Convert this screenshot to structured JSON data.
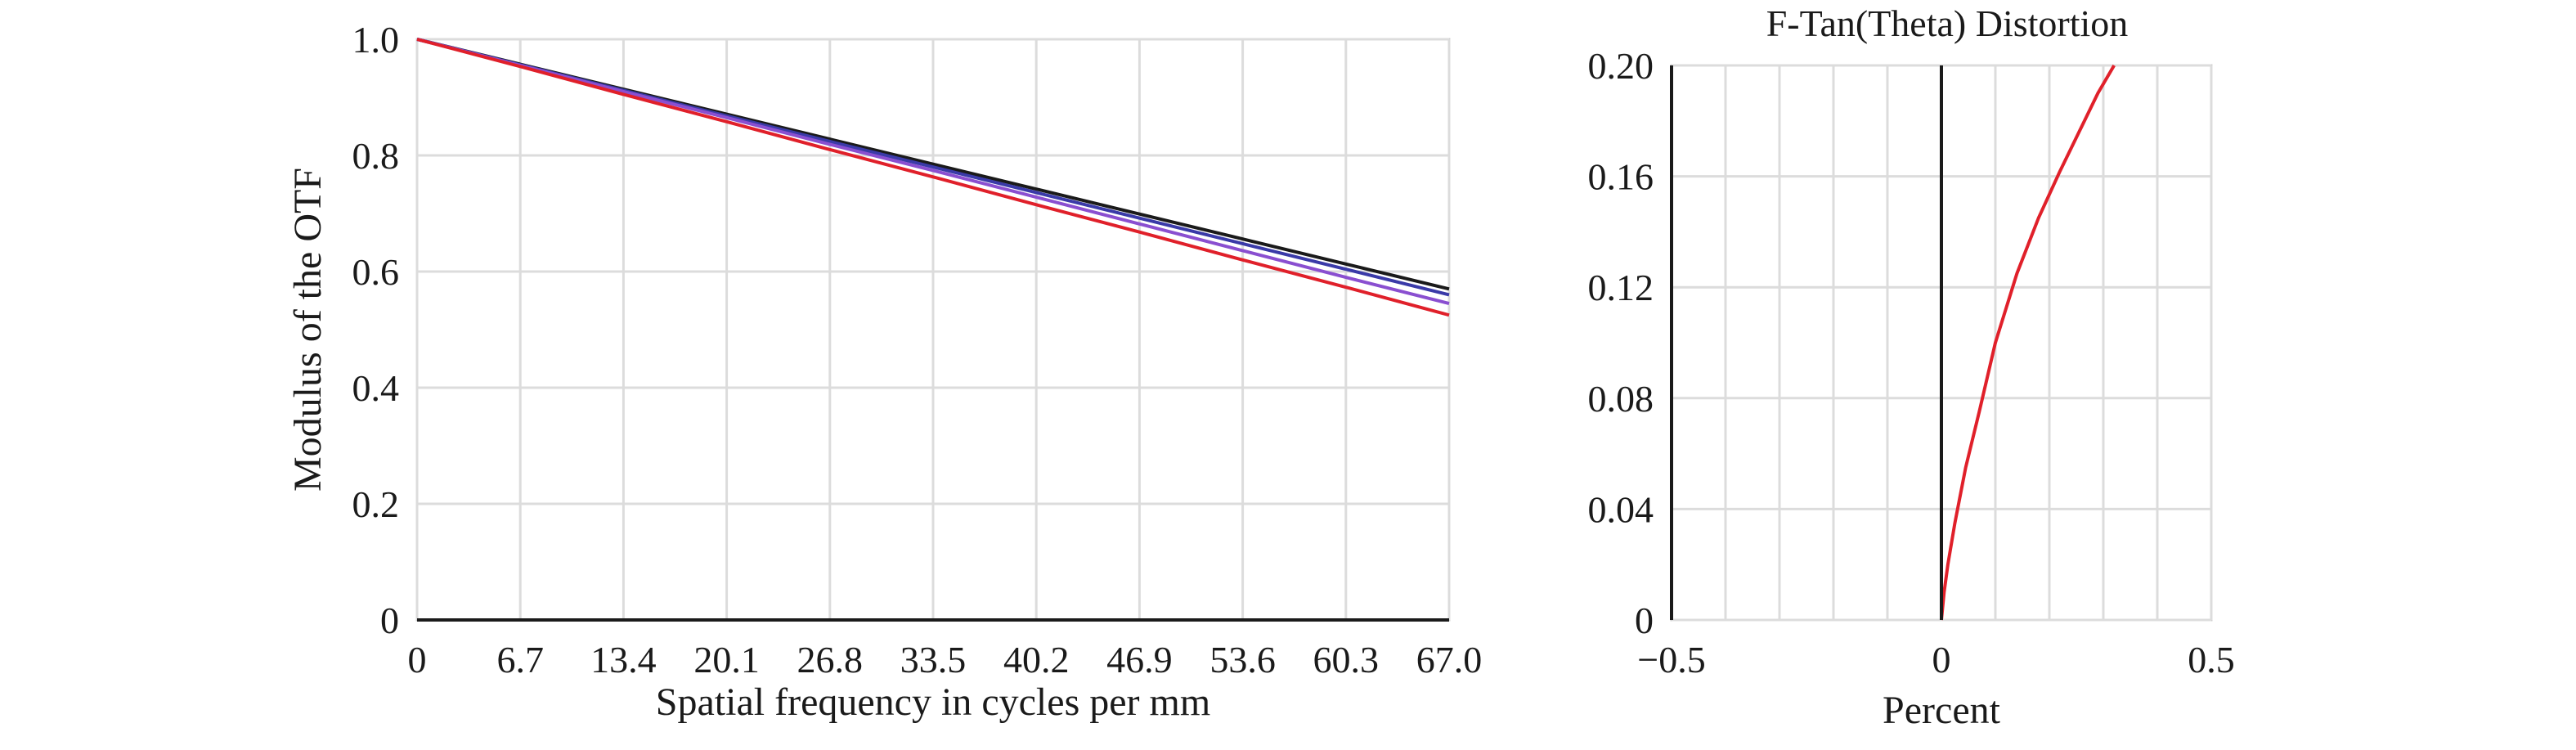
{
  "chart_data": [
    {
      "type": "line",
      "title": "",
      "xlabel": "Spatial frequency in cycles per mm",
      "ylabel": "Modulus of the OTF",
      "xlim": [
        0,
        67.0
      ],
      "ylim": [
        0,
        1.0
      ],
      "x_ticks": [
        "0",
        "6.7",
        "13.4",
        "20.1",
        "26.8",
        "33.5",
        "40.2",
        "46.9",
        "53.6",
        "60.3",
        "67.0"
      ],
      "y_ticks": [
        "0",
        "0.2",
        "0.4",
        "0.6",
        "0.8",
        "1.0"
      ],
      "grid": true,
      "x": [
        0,
        6.7,
        13.4,
        20.1,
        26.8,
        33.5,
        40.2,
        46.9,
        53.6,
        60.3,
        67.0
      ],
      "series": [
        {
          "color": "#1a1a1a",
          "values": [
            1.0,
            0.957,
            0.914,
            0.871,
            0.828,
            0.785,
            0.742,
            0.699,
            0.656,
            0.613,
            0.57
          ]
        },
        {
          "color": "#3a3aa8",
          "values": [
            1.0,
            0.956,
            0.912,
            0.868,
            0.824,
            0.78,
            0.736,
            0.692,
            0.648,
            0.604,
            0.56
          ]
        },
        {
          "color": "#8a4fd0",
          "values": [
            1.0,
            0.955,
            0.91,
            0.865,
            0.819,
            0.774,
            0.728,
            0.682,
            0.636,
            0.59,
            0.545
          ]
        },
        {
          "color": "#e0202a",
          "values": [
            1.0,
            0.953,
            0.905,
            0.858,
            0.81,
            0.763,
            0.715,
            0.668,
            0.62,
            0.573,
            0.525
          ]
        }
      ]
    },
    {
      "type": "line",
      "title": "F-Tan(Theta) Distortion",
      "xlabel": "Percent",
      "ylabel": "",
      "xlim": [
        -0.5,
        0.5
      ],
      "ylim": [
        0,
        0.2
      ],
      "x_ticks": [
        "−0.5",
        "0",
        "0.5"
      ],
      "y_ticks": [
        "0",
        "0.04",
        "0.08",
        "0.12",
        "0.16",
        "0.20"
      ],
      "grid": true,
      "series": [
        {
          "color": "#e0202a",
          "x": [
            0,
            0.005,
            0.012,
            0.025,
            0.045,
            0.07,
            0.1,
            0.14,
            0.18,
            0.22,
            0.26,
            0.29,
            0.32
          ],
          "y": [
            0,
            0.01,
            0.02,
            0.035,
            0.055,
            0.075,
            0.1,
            0.125,
            0.145,
            0.162,
            0.178,
            0.19,
            0.2
          ]
        }
      ]
    }
  ]
}
